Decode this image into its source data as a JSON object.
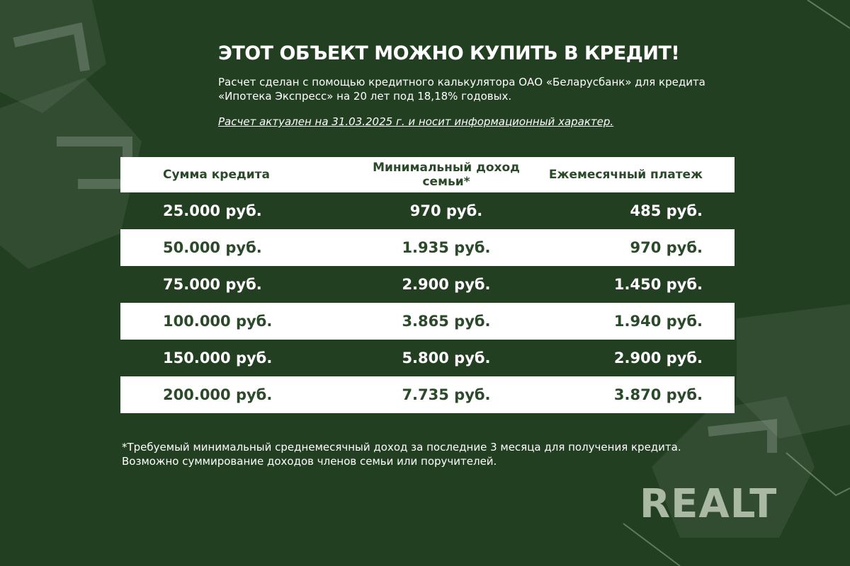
{
  "title": "ЭТОТ ОБЪЕКТ МОЖНО КУПИТЬ В КРЕДИТ!",
  "subtitle": "Расчет сделан с помощью кредитного калькулятора ОАО «Беларусбанк» для кредита «Ипотека Экспресс» на 20 лет под 18,18% годовых.",
  "note": "Расчет актуален на 31.03.2025 г. и носит информационный характер.",
  "table": {
    "headers": [
      "Сумма кредита",
      "Минимальный доход семьи*",
      "Ежемесячный платеж"
    ],
    "rows": [
      [
        "25.000 руб.",
        "970 руб.",
        "485 руб."
      ],
      [
        "50.000 руб.",
        "1.935 руб.",
        "970 руб."
      ],
      [
        "75.000 руб.",
        "2.900 руб.",
        "1.450 руб."
      ],
      [
        "100.000 руб.",
        "3.865 руб.",
        "1.940 руб."
      ],
      [
        "150.000 руб.",
        "5.800 руб.",
        "2.900 руб."
      ],
      [
        "200.000 руб.",
        "7.735 руб.",
        "3.870 руб."
      ]
    ]
  },
  "footnote": "*Требуемый минимальный среднемесячный доход за последние 3 месяца для получения кредита. Возможно суммирование доходов членов семьи или поручителей.",
  "logo": "REALT",
  "colors": {
    "background": "#233f22",
    "accent_text": "#2b4a2a",
    "light_row": "#ffffff"
  }
}
